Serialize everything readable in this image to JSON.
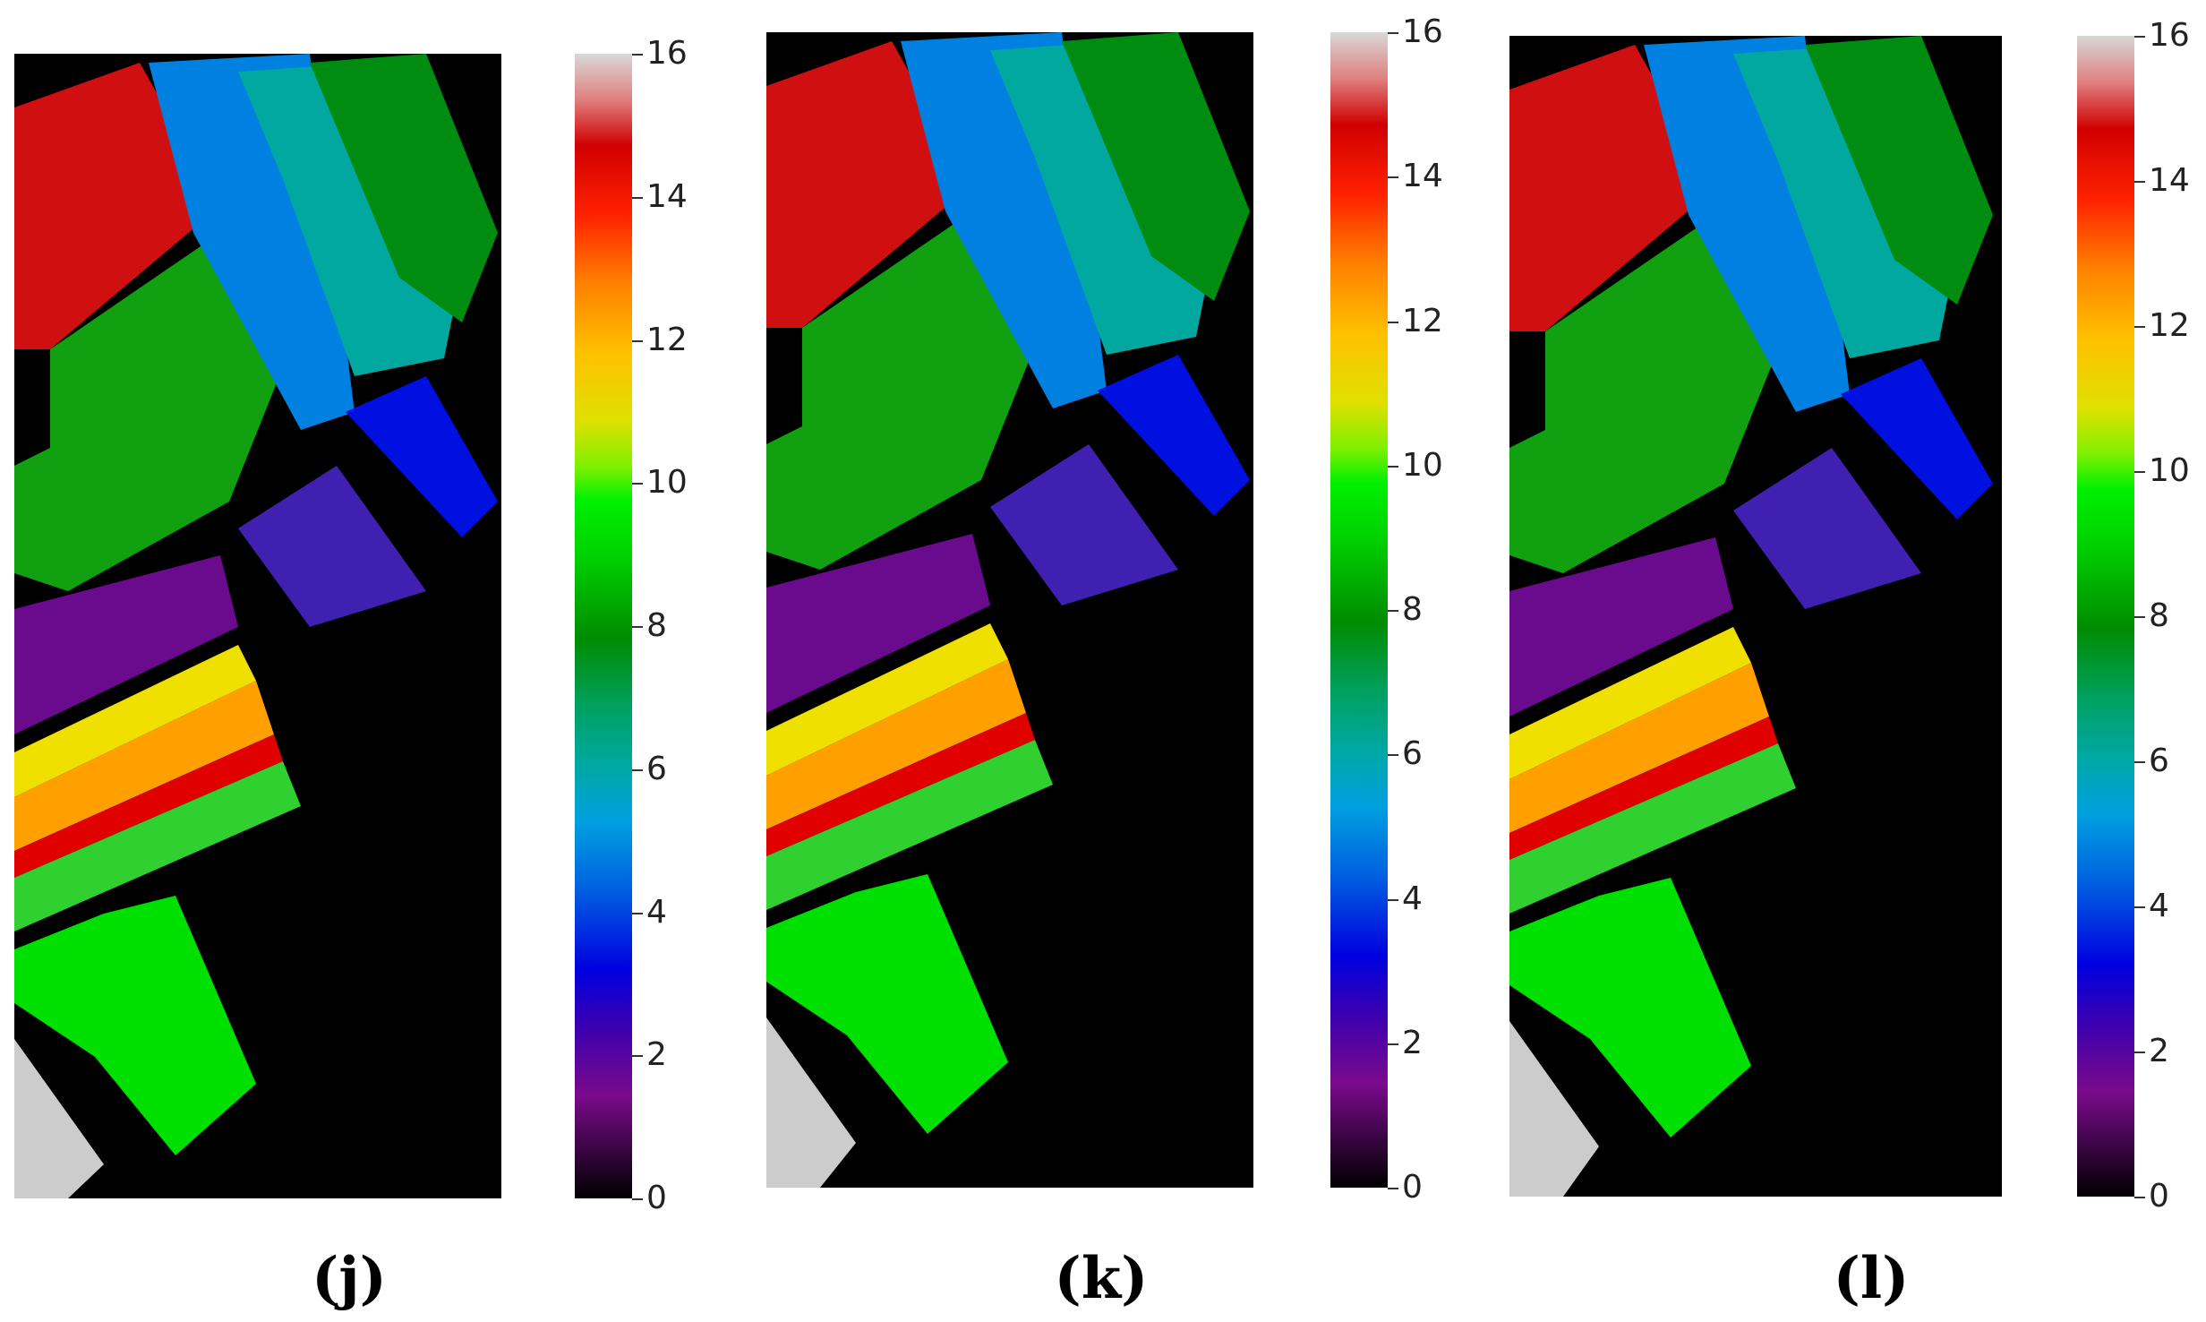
{
  "figure": {
    "panels": [
      {
        "label": "(j)"
      },
      {
        "label": "(k)"
      },
      {
        "label": "(l)"
      }
    ],
    "colorbar": {
      "ticks": [
        "0",
        "2",
        "4",
        "6",
        "8",
        "10",
        "12",
        "14",
        "16"
      ],
      "min": 0,
      "max": 16
    },
    "colors": {
      "background": "#000000",
      "class_1_purple": "#6a0a8c",
      "class_2_indigo": "#4020b0",
      "class_3_blue": "#0010e0",
      "class_4_lightblue": "#0090e0",
      "class_5_teal": "#00a8a0",
      "class_6_darkgreen": "#008c10",
      "class_7_green": "#10b010",
      "class_8_brightgreen": "#00e000",
      "class_9_yellow": "#f0e000",
      "class_10_orange": "#ffa000",
      "class_11_red": "#e00000",
      "class_12_gray": "#cccccc"
    }
  }
}
